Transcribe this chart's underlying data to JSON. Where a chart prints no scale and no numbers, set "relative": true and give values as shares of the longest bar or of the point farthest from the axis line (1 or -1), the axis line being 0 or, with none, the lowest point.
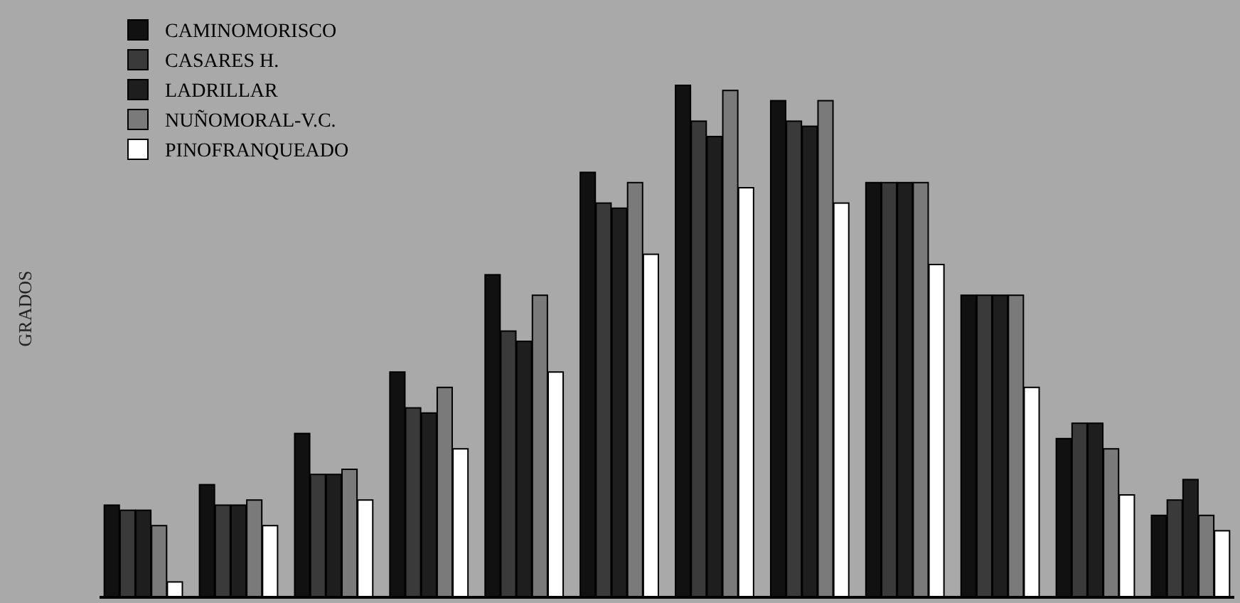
{
  "chart_data": {
    "type": "bar",
    "ylabel": "GRADOS",
    "relative": true,
    "legend": "top left",
    "categories": [
      null,
      null,
      null,
      null,
      null,
      null,
      null,
      null,
      null,
      null,
      null,
      null
    ],
    "series": [
      {
        "name": "CAMINOMORISCO",
        "color": "#111111",
        "values": [
          0.18,
          0.22,
          0.32,
          0.44,
          0.63,
          0.83,
          1,
          0.97,
          0.81,
          0.59,
          0.31,
          0.16
        ]
      },
      {
        "name": "CASARES H.",
        "color": "#3a3a3a",
        "values": [
          0.17,
          0.18,
          0.24,
          0.37,
          0.52,
          0.77,
          0.93,
          0.93,
          0.81,
          0.59,
          0.34,
          0.19
        ]
      },
      {
        "name": "LADRILLAR",
        "color": "#1e1e1e",
        "values": [
          0.17,
          0.18,
          0.24,
          0.36,
          0.5,
          0.76,
          0.9,
          0.92,
          0.81,
          0.59,
          0.34,
          0.23
        ]
      },
      {
        "name": "NUÑOMORAL-V.C.",
        "color": "#7a7a7a",
        "values": [
          0.14,
          0.19,
          0.25,
          0.41,
          0.59,
          0.81,
          0.99,
          0.97,
          0.81,
          0.59,
          0.29,
          0.16
        ]
      },
      {
        "name": "PINOFRANQUEADO",
        "color": "#ffffff",
        "values": [
          0.03,
          0.14,
          0.19,
          0.29,
          0.44,
          0.67,
          0.8,
          0.77,
          0.65,
          0.41,
          0.2,
          0.13
        ]
      }
    ]
  }
}
